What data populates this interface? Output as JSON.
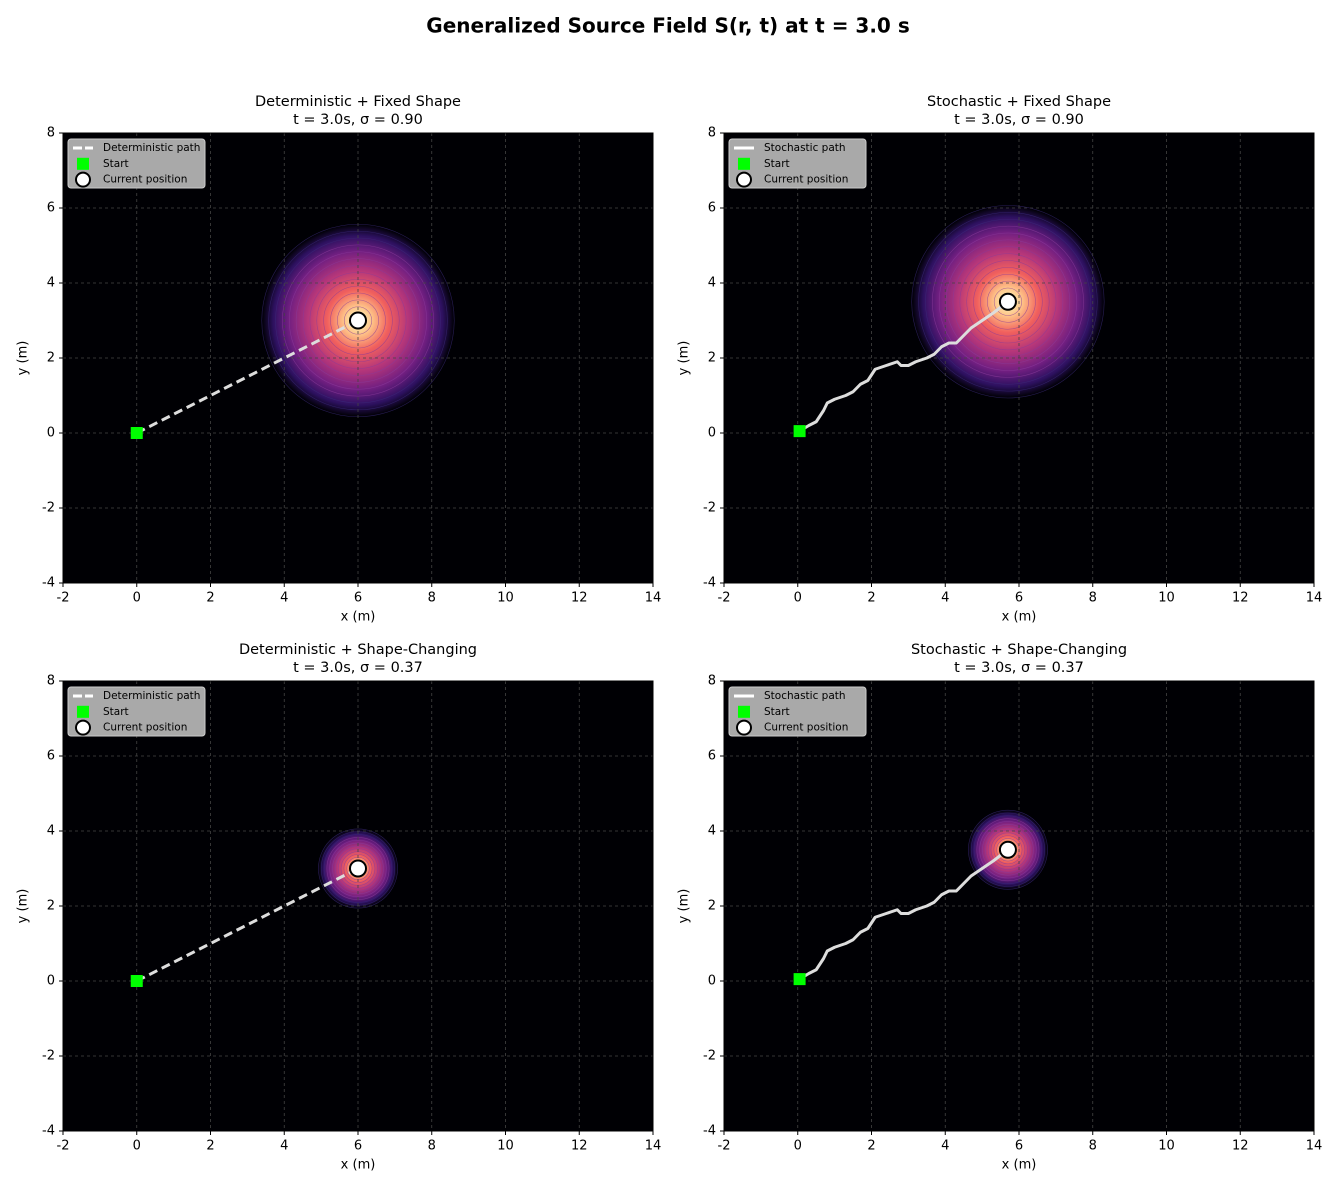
{
  "title": "Generalized Source Field S(r, t) at t = 3.0 s",
  "chart_data": [
    {
      "type": "trajectory",
      "title": "Deterministic + Fixed Shape",
      "subtitle": "t = 3.0s, σ = 0.90",
      "sigma": 0.9,
      "xlabel": "x (m)",
      "ylabel": "y (m)",
      "xlim": [
        -2,
        14
      ],
      "ylim": [
        -4,
        8
      ],
      "xticks": [
        -2,
        0,
        2,
        4,
        6,
        8,
        10,
        12,
        14
      ],
      "yticks": [
        -4,
        -2,
        0,
        2,
        4,
        6,
        8
      ],
      "grid": true,
      "legend": "upper-left",
      "series": [
        {
          "name": "Deterministic path",
          "color": "#dddddd",
          "style": "dashed",
          "x": [
            0,
            6
          ],
          "values": [
            0,
            3
          ]
        },
        {
          "name": "Start",
          "color": "#00ff00",
          "marker": "square",
          "x": [
            0
          ],
          "values": [
            0
          ]
        },
        {
          "name": "Current position",
          "color": "#ffffff",
          "marker": "circle",
          "x": [
            6
          ],
          "values": [
            3
          ]
        }
      ]
    },
    {
      "type": "trajectory",
      "title": "Stochastic + Fixed Shape",
      "subtitle": "t = 3.0s, σ = 0.90",
      "sigma": 0.9,
      "xlabel": "x (m)",
      "ylabel": "y (m)",
      "xlim": [
        -2,
        14
      ],
      "ylim": [
        -4,
        8
      ],
      "xticks": [
        -2,
        0,
        2,
        4,
        6,
        8,
        10,
        12,
        14
      ],
      "yticks": [
        -4,
        -2,
        0,
        2,
        4,
        6,
        8
      ],
      "grid": true,
      "legend": "upper-left",
      "series": [
        {
          "name": "Stochastic path",
          "color": "#dddddd",
          "style": "solid",
          "x": [
            0.05,
            0.3,
            0.5,
            0.7,
            0.8,
            1.0,
            1.3,
            1.5,
            1.7,
            1.9,
            2.1,
            2.4,
            2.7,
            2.8,
            3.0,
            3.2,
            3.5,
            3.7,
            3.9,
            4.1,
            4.3,
            4.5,
            4.7,
            5.0,
            5.3,
            5.7
          ],
          "values": [
            0.05,
            0.2,
            0.3,
            0.6,
            0.8,
            0.9,
            1.0,
            1.1,
            1.3,
            1.4,
            1.7,
            1.8,
            1.9,
            1.8,
            1.8,
            1.9,
            2.0,
            2.1,
            2.3,
            2.4,
            2.4,
            2.6,
            2.8,
            3.0,
            3.2,
            3.5
          ]
        },
        {
          "name": "Start",
          "color": "#00ff00",
          "marker": "square",
          "x": [
            0.05
          ],
          "values": [
            0.05
          ]
        },
        {
          "name": "Current position",
          "color": "#ffffff",
          "marker": "circle",
          "x": [
            5.7
          ],
          "values": [
            3.5
          ]
        }
      ]
    },
    {
      "type": "trajectory",
      "title": "Deterministic + Shape-Changing",
      "subtitle": "t = 3.0s, σ = 0.37",
      "sigma": 0.37,
      "xlabel": "x (m)",
      "ylabel": "y (m)",
      "xlim": [
        -2,
        14
      ],
      "ylim": [
        -4,
        8
      ],
      "xticks": [
        -2,
        0,
        2,
        4,
        6,
        8,
        10,
        12,
        14
      ],
      "yticks": [
        -4,
        -2,
        0,
        2,
        4,
        6,
        8
      ],
      "grid": true,
      "legend": "upper-left",
      "series": [
        {
          "name": "Deterministic path",
          "color": "#dddddd",
          "style": "dashed",
          "x": [
            0,
            6
          ],
          "values": [
            0,
            3
          ]
        },
        {
          "name": "Start",
          "color": "#00ff00",
          "marker": "square",
          "x": [
            0
          ],
          "values": [
            0
          ]
        },
        {
          "name": "Current position",
          "color": "#ffffff",
          "marker": "circle",
          "x": [
            6
          ],
          "values": [
            3
          ]
        }
      ]
    },
    {
      "type": "trajectory",
      "title": "Stochastic + Shape-Changing",
      "subtitle": "t = 3.0s, σ = 0.37",
      "sigma": 0.37,
      "xlabel": "x (m)",
      "ylabel": "y (m)",
      "xlim": [
        -2,
        14
      ],
      "ylim": [
        -4,
        8
      ],
      "xticks": [
        -2,
        0,
        2,
        4,
        6,
        8,
        10,
        12,
        14
      ],
      "yticks": [
        -4,
        -2,
        0,
        2,
        4,
        6,
        8
      ],
      "grid": true,
      "legend": "upper-left",
      "series": [
        {
          "name": "Stochastic path",
          "color": "#dddddd",
          "style": "solid",
          "x": [
            0.05,
            0.3,
            0.5,
            0.7,
            0.8,
            1.0,
            1.3,
            1.5,
            1.7,
            1.9,
            2.1,
            2.4,
            2.7,
            2.8,
            3.0,
            3.2,
            3.5,
            3.7,
            3.9,
            4.1,
            4.3,
            4.5,
            4.7,
            5.0,
            5.3,
            5.7
          ],
          "values": [
            0.05,
            0.2,
            0.3,
            0.6,
            0.8,
            0.9,
            1.0,
            1.1,
            1.3,
            1.4,
            1.7,
            1.8,
            1.9,
            1.8,
            1.8,
            1.9,
            2.0,
            2.1,
            2.3,
            2.4,
            2.4,
            2.6,
            2.8,
            3.0,
            3.2,
            3.5
          ]
        },
        {
          "name": "Start",
          "color": "#00ff00",
          "marker": "square",
          "x": [
            0.05
          ],
          "values": [
            0.05
          ]
        },
        {
          "name": "Current position",
          "color": "#ffffff",
          "marker": "circle",
          "x": [
            5.7
          ],
          "values": [
            3.5
          ]
        }
      ]
    }
  ]
}
